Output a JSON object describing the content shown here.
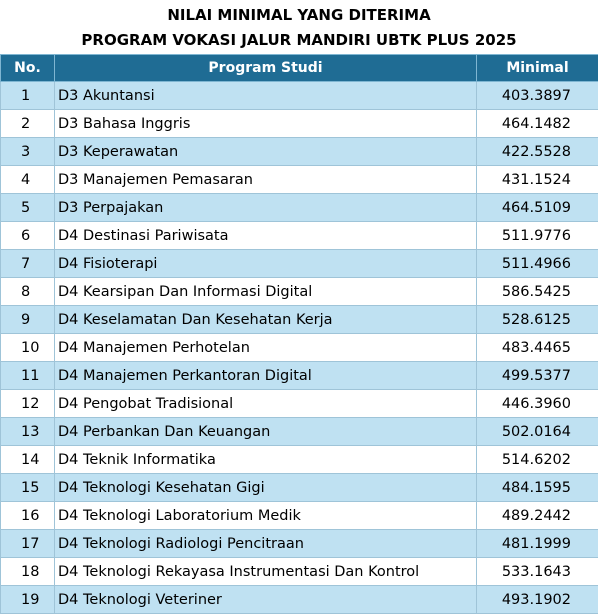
{
  "title": {
    "line1": "NILAI MINIMAL YANG DITERIMA",
    "line2": "PROGRAM VOKASI JALUR MANDIRI UBTK PLUS 2025"
  },
  "table": {
    "headers": {
      "no": "No.",
      "program": "Program Studi",
      "minimal": "Minimal"
    },
    "rows": [
      {
        "no": "1",
        "program": "D3 Akuntansi",
        "minimal": "403.3897"
      },
      {
        "no": "2",
        "program": "D3 Bahasa Inggris",
        "minimal": "464.1482"
      },
      {
        "no": "3",
        "program": "D3 Keperawatan",
        "minimal": "422.5528"
      },
      {
        "no": "4",
        "program": "D3 Manajemen Pemasaran",
        "minimal": "431.1524"
      },
      {
        "no": "5",
        "program": "D3 Perpajakan",
        "minimal": "464.5109"
      },
      {
        "no": "6",
        "program": "D4 Destinasi Pariwisata",
        "minimal": "511.9776"
      },
      {
        "no": "7",
        "program": "D4 Fisioterapi",
        "minimal": "511.4966"
      },
      {
        "no": "8",
        "program": "D4 Kearsipan Dan Informasi Digital",
        "minimal": "586.5425"
      },
      {
        "no": "9",
        "program": "D4 Keselamatan Dan Kesehatan Kerja",
        "minimal": "528.6125"
      },
      {
        "no": "10",
        "program": "D4 Manajemen Perhotelan",
        "minimal": "483.4465"
      },
      {
        "no": "11",
        "program": "D4 Manajemen Perkantoran Digital",
        "minimal": "499.5377"
      },
      {
        "no": "12",
        "program": "D4 Pengobat Tradisional",
        "minimal": "446.3960"
      },
      {
        "no": "13",
        "program": "D4 Perbankan Dan Keuangan",
        "minimal": "502.0164"
      },
      {
        "no": "14",
        "program": "D4 Teknik Informatika",
        "minimal": "514.6202"
      },
      {
        "no": "15",
        "program": "D4 Teknologi Kesehatan Gigi",
        "minimal": "484.1595"
      },
      {
        "no": "16",
        "program": "D4 Teknologi Laboratorium Medik",
        "minimal": "489.2442"
      },
      {
        "no": "17",
        "program": "D4 Teknologi Radiologi Pencitraan",
        "minimal": "481.1999"
      },
      {
        "no": "18",
        "program": "D4 Teknologi Rekayasa Instrumentasi Dan Kontrol",
        "minimal": "533.1643"
      },
      {
        "no": "19",
        "program": "D4 Teknologi Veteriner",
        "minimal": "493.1902"
      }
    ]
  },
  "colors": {
    "header_bg": "#1f6c94",
    "header_text": "#ffffff",
    "row_band": "#bfe1f2",
    "row_plain": "#ffffff"
  }
}
